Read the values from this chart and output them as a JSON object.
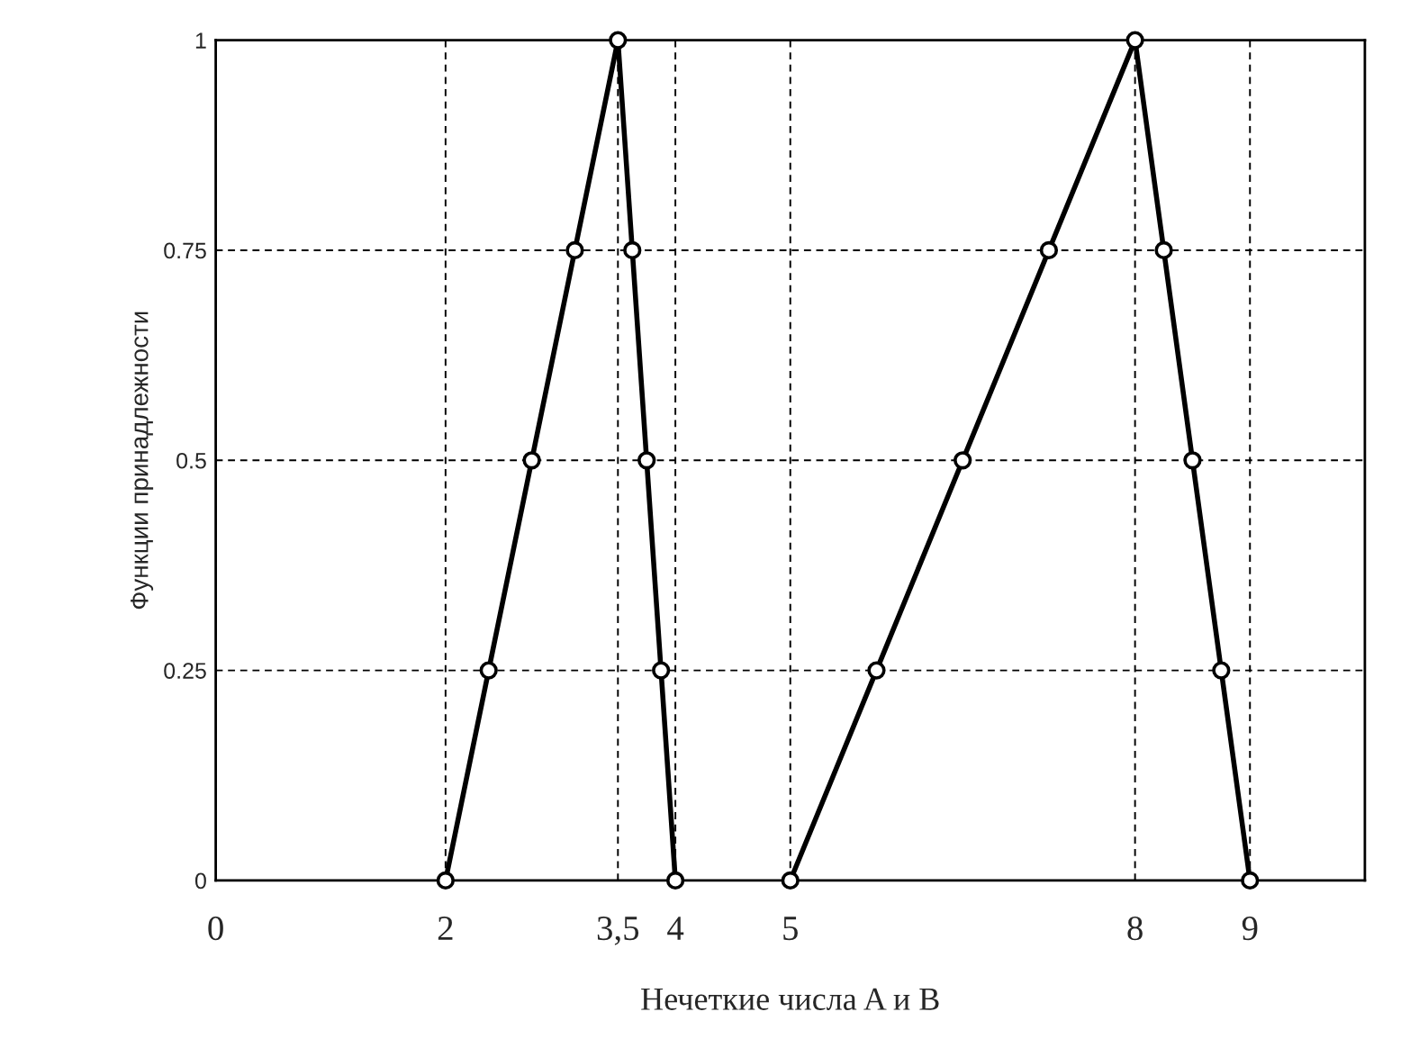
{
  "chart_data": {
    "type": "line",
    "xlabel": "Нечеткие числа A и B",
    "ylabel": "Функции принадлежности",
    "series": [
      {
        "color": "#000000",
        "x": [
          2,
          2.375,
          2.75,
          3.125,
          3.5,
          3.625,
          3.75,
          3.875,
          4
        ],
        "values": [
          0,
          0.25,
          0.5,
          0.75,
          1,
          0.75,
          0.5,
          0.25,
          0
        ]
      },
      {
        "color": "#000000",
        "x": [
          5,
          5.75,
          6.5,
          7.25,
          8,
          8.25,
          8.5,
          8.75,
          9
        ],
        "values": [
          0,
          0.25,
          0.5,
          0.75,
          1,
          0.75,
          0.5,
          0.25,
          0
        ]
      }
    ],
    "xlim": [
      0,
      10
    ],
    "xticks": [
      0,
      2,
      {
        "value": 3.5,
        "label": "3,5"
      },
      4,
      5,
      8,
      9
    ],
    "ylim": [
      0,
      1
    ],
    "yticks": [
      0,
      0.25,
      0.5,
      0.75,
      1
    ],
    "grid": true,
    "marker": "circle",
    "line_style": "solid"
  }
}
